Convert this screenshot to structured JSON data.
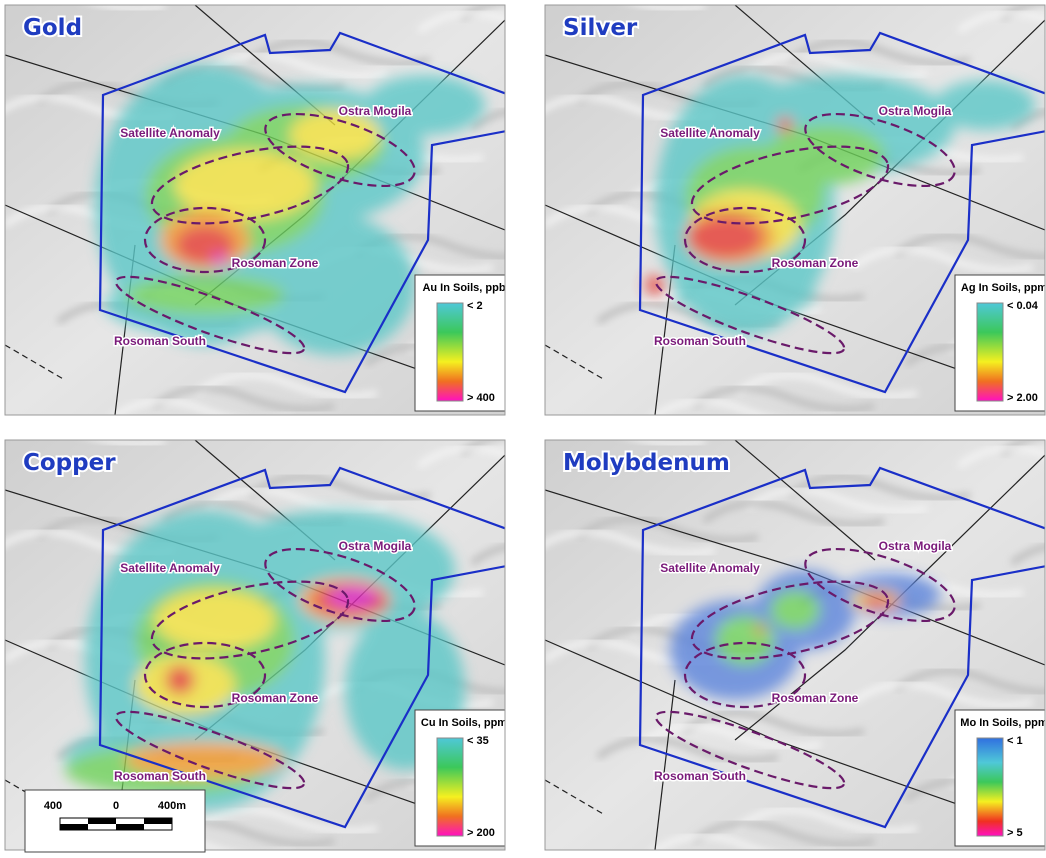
{
  "panels": [
    {
      "title": "Gold",
      "labels": [
        "Satellite Anomaly",
        "Ostra Mogila",
        "Rosoman Zone",
        "Rosoman South"
      ],
      "legend": {
        "title": "Au In Soils, ppb",
        "min": "< 2",
        "max": "> 400"
      }
    },
    {
      "title": "Silver",
      "labels": [
        "Satellite Anomaly",
        "Ostra Mogila",
        "Rosoman Zone",
        "Rosoman South"
      ],
      "legend": {
        "title": "Ag In Soils, ppm",
        "min": "< 0.04",
        "max": "> 2.00"
      }
    },
    {
      "title": "Copper",
      "labels": [
        "Satellite Anomaly",
        "Ostra Mogila",
        "Rosoman Zone",
        "Rosoman South"
      ],
      "legend": {
        "title": "Cu In Soils, ppm",
        "min": "< 35",
        "max": "> 200"
      }
    },
    {
      "title": "Molybdenum",
      "labels": [
        "Satellite Anomaly",
        "Ostra Mogila",
        "Rosoman Zone",
        "Rosoman South"
      ],
      "legend": {
        "title": "Mo In Soils, ppm",
        "min": "< 1",
        "max": "> 5"
      }
    }
  ],
  "scale_bar": {
    "labels": [
      "400",
      "0",
      "400m"
    ]
  }
}
